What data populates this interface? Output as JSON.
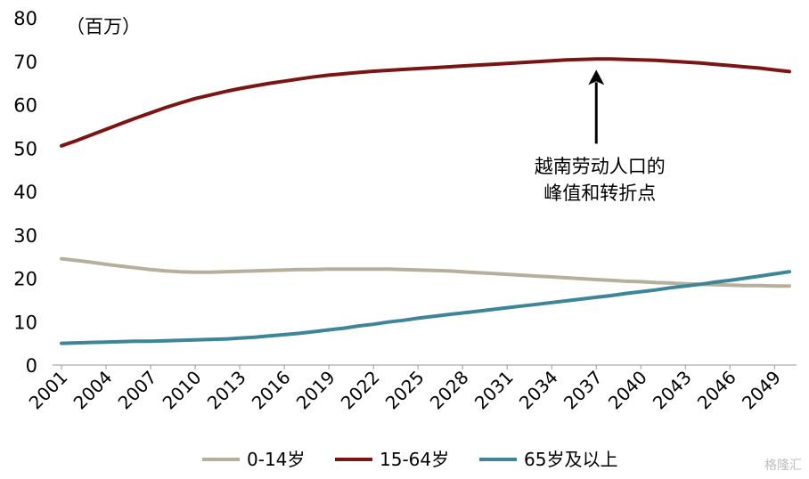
{
  "chart_data": {
    "type": "line",
    "unit_label": "（百万）",
    "x": [
      2001,
      2002,
      2003,
      2004,
      2005,
      2006,
      2007,
      2008,
      2009,
      2010,
      2011,
      2012,
      2013,
      2014,
      2015,
      2016,
      2017,
      2018,
      2019,
      2020,
      2021,
      2022,
      2023,
      2024,
      2025,
      2026,
      2027,
      2028,
      2029,
      2030,
      2031,
      2032,
      2033,
      2034,
      2035,
      2036,
      2037,
      2038,
      2039,
      2040,
      2041,
      2042,
      2043,
      2044,
      2045,
      2046,
      2047,
      2048,
      2049,
      2050
    ],
    "x_tick_labels": [
      "2001",
      "2004",
      "2007",
      "2010",
      "2013",
      "2016",
      "2019",
      "2022",
      "2025",
      "2028",
      "2031",
      "2034",
      "2037",
      "2040",
      "2043",
      "2046",
      "2049"
    ],
    "y_ticks": [
      0,
      10,
      20,
      30,
      40,
      50,
      60,
      70,
      80
    ],
    "ylim": [
      0,
      80
    ],
    "grid": false,
    "legend_position": "bottom",
    "series": [
      {
        "name": "0-14岁",
        "color": "#b5b09e",
        "values": [
          24.5,
          24.1,
          23.7,
          23.2,
          22.8,
          22.4,
          22.0,
          21.7,
          21.5,
          21.4,
          21.4,
          21.5,
          21.6,
          21.7,
          21.8,
          21.9,
          22.0,
          22.0,
          22.1,
          22.1,
          22.1,
          22.1,
          22.1,
          22.0,
          21.9,
          21.8,
          21.7,
          21.5,
          21.3,
          21.1,
          20.9,
          20.7,
          20.5,
          20.3,
          20.1,
          19.9,
          19.7,
          19.5,
          19.3,
          19.2,
          19.0,
          18.9,
          18.7,
          18.6,
          18.5,
          18.4,
          18.3,
          18.3,
          18.2,
          18.2
        ]
      },
      {
        "name": "15-64岁",
        "color": "#7a1515",
        "values": [
          50.5,
          51.7,
          53.0,
          54.3,
          55.6,
          56.9,
          58.1,
          59.3,
          60.4,
          61.4,
          62.2,
          63.0,
          63.7,
          64.3,
          64.9,
          65.4,
          65.9,
          66.4,
          66.8,
          67.1,
          67.4,
          67.7,
          67.9,
          68.1,
          68.3,
          68.5,
          68.7,
          68.9,
          69.1,
          69.3,
          69.5,
          69.7,
          69.9,
          70.1,
          70.3,
          70.4,
          70.5,
          70.5,
          70.4,
          70.3,
          70.2,
          70.0,
          69.8,
          69.6,
          69.3,
          69.0,
          68.7,
          68.4,
          68.0,
          67.6
        ]
      },
      {
        "name": "65岁及以上",
        "color": "#3e8597",
        "values": [
          5.0,
          5.1,
          5.2,
          5.3,
          5.4,
          5.5,
          5.5,
          5.6,
          5.7,
          5.8,
          5.9,
          6.0,
          6.2,
          6.4,
          6.7,
          7.0,
          7.3,
          7.7,
          8.1,
          8.5,
          9.0,
          9.4,
          9.9,
          10.3,
          10.8,
          11.2,
          11.6,
          12.0,
          12.4,
          12.8,
          13.2,
          13.6,
          14.0,
          14.4,
          14.8,
          15.2,
          15.6,
          16.0,
          16.5,
          16.9,
          17.3,
          17.8,
          18.2,
          18.6,
          19.1,
          19.5,
          20.0,
          20.5,
          21.0,
          21.5
        ]
      }
    ],
    "annotation": {
      "lines": [
        "越南劳动人口的",
        "峰值和转折点"
      ],
      "arrow_target": {
        "x": 2037,
        "y": 70.5
      },
      "arrow_tail": {
        "x": 2037,
        "y": 51
      }
    }
  },
  "watermark": "格隆汇"
}
